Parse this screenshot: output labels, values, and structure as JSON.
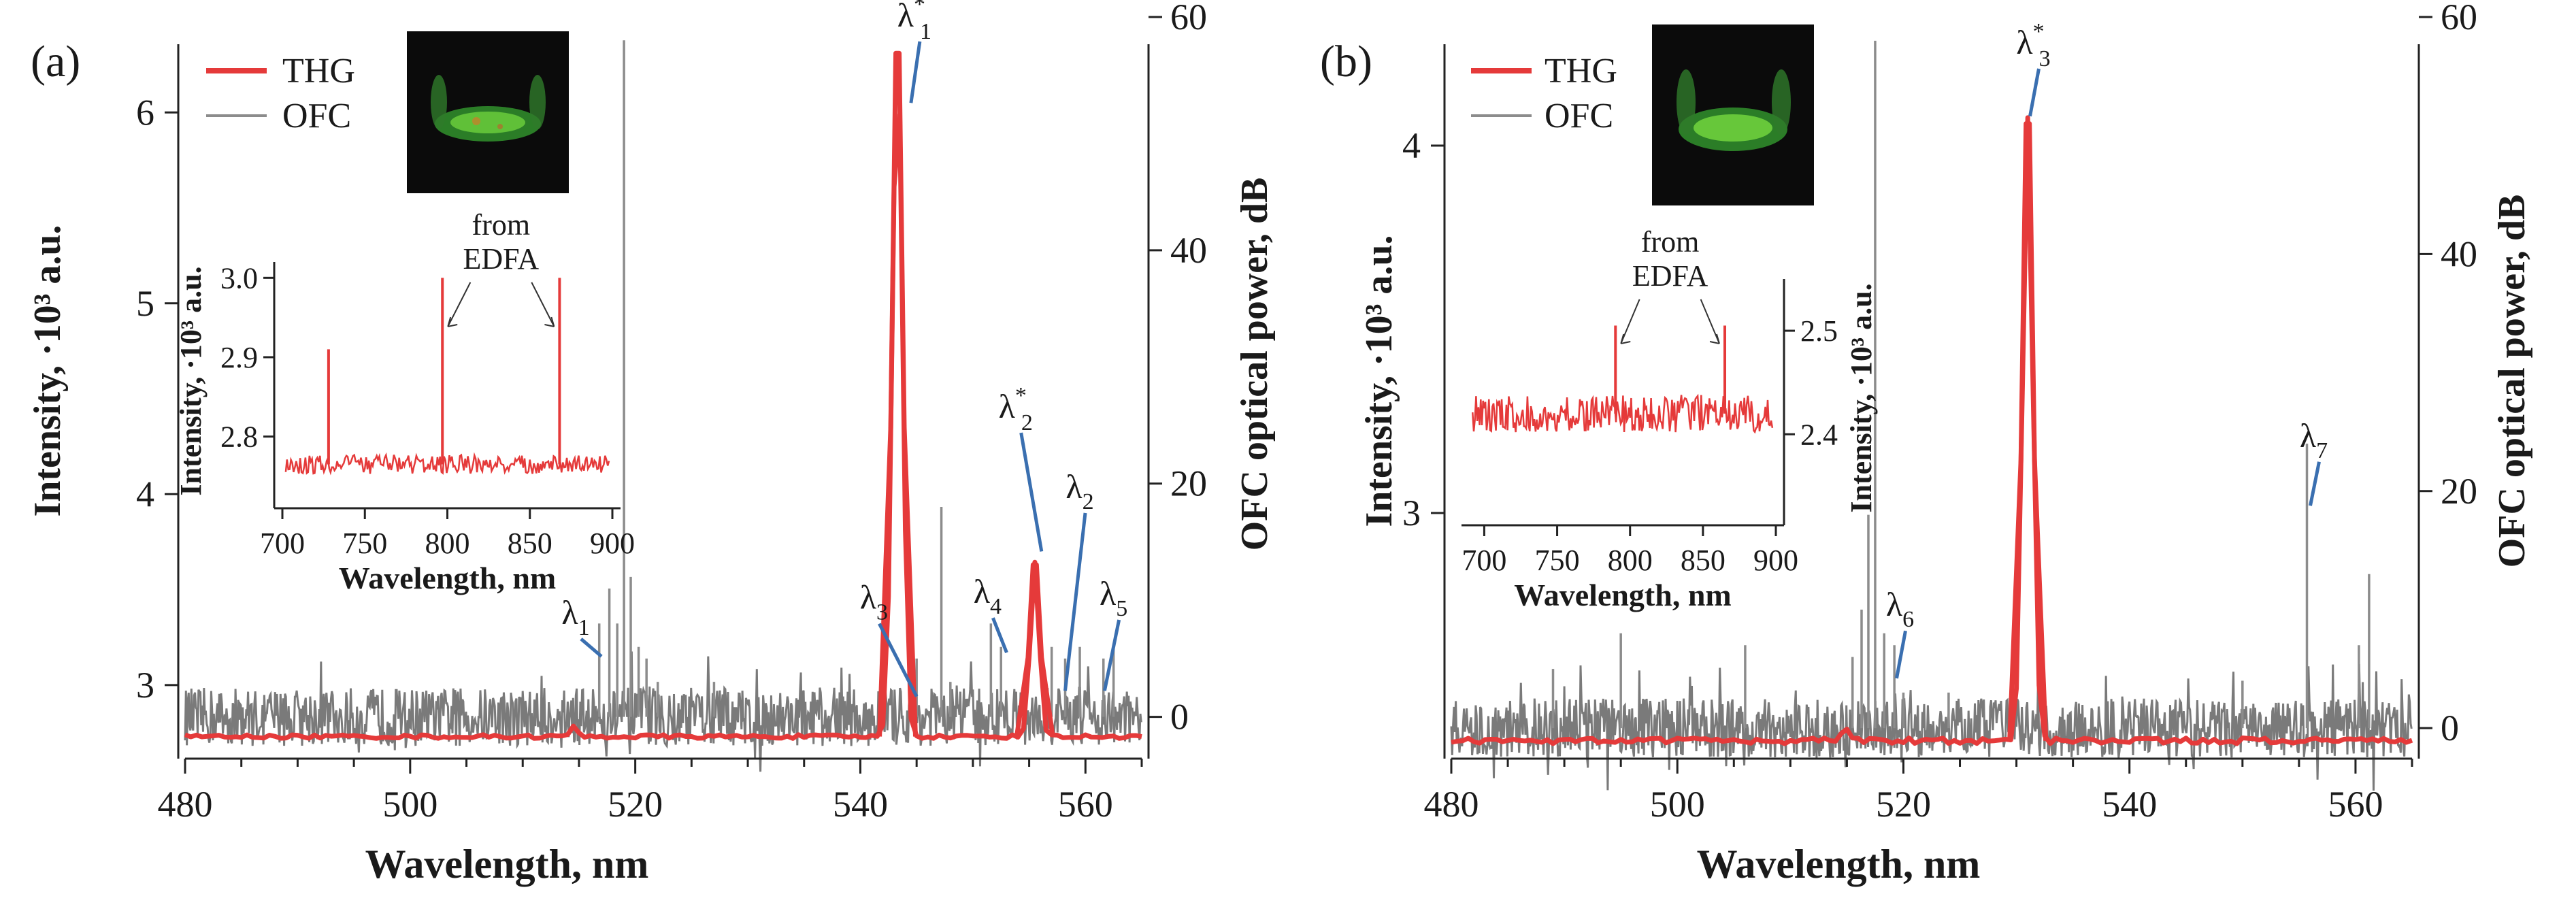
{
  "colors": {
    "thg": "#e53a3a",
    "ofc": "#8c8c8c",
    "leader": "#3a6fb0",
    "axis": "#222222"
  },
  "icons": {
    "inset_image": "green-fluorescence-micrograph-icon"
  },
  "chart_data": [
    {
      "type": "line",
      "panel": "(a)",
      "xlabel": "Wavelength, nm",
      "ylabel_left": "Intensity, ·10³ a.u.",
      "ylabel_right": "OFC optical power, dB",
      "xlim": [
        480,
        565
      ],
      "xticks": [
        480,
        500,
        520,
        540,
        560
      ],
      "ylim_left": [
        2.65,
        6.5
      ],
      "yticks_left": [
        3,
        4,
        5,
        6
      ],
      "ylim_right": [
        -3,
        60
      ],
      "yticks_right": [
        0,
        20,
        40,
        60
      ],
      "legend": [
        "THG",
        "OFC"
      ],
      "series": [
        {
          "name": "THG",
          "axis": "left",
          "baseline": 2.73,
          "noise": 0.01,
          "peaks": [
            {
              "x": 543.3,
              "y": 6.33,
              "w": 0.45
            },
            {
              "x": 555.5,
              "y": 3.65,
              "w": 0.4
            },
            {
              "x": 514.5,
              "y": 2.78,
              "w": 0.3
            }
          ]
        },
        {
          "name": "OFC",
          "axis": "right",
          "noise_floor": 0,
          "lines": [
            {
              "x": 516.8,
              "y": 8
            },
            {
              "x": 517.7,
              "y": 11
            },
            {
              "x": 518.4,
              "y": 8
            },
            {
              "x": 519.0,
              "y": 58
            },
            {
              "x": 519.6,
              "y": 12
            },
            {
              "x": 520.3,
              "y": 6
            },
            {
              "x": 521.0,
              "y": 5
            },
            {
              "x": 522.0,
              "y": 3
            },
            {
              "x": 527.0,
              "y": 3
            },
            {
              "x": 545.0,
              "y": 5
            },
            {
              "x": 547.2,
              "y": 18
            },
            {
              "x": 548.0,
              "y": 3
            },
            {
              "x": 551.6,
              "y": 8
            },
            {
              "x": 552.5,
              "y": 6
            },
            {
              "x": 557.0,
              "y": 6
            },
            {
              "x": 558.2,
              "y": 5
            },
            {
              "x": 559.5,
              "y": 6
            },
            {
              "x": 561.6,
              "y": 5
            },
            {
              "x": 562.5,
              "y": 6
            }
          ]
        }
      ],
      "annotations": [
        {
          "base": "λ",
          "sup": "*",
          "sub": "1",
          "tip": [
            544.5,
            6.05
          ],
          "label": [
            544.8,
            6.45
          ]
        },
        {
          "base": "λ",
          "sup": "*",
          "sub": "2",
          "tip": [
            556.1,
            3.7
          ],
          "label": [
            553.8,
            4.4
          ]
        },
        {
          "base": "λ",
          "sup": "",
          "sub": "1",
          "tip": [
            517.0,
            3.15
          ],
          "label": [
            514.7,
            3.32
          ]
        },
        {
          "base": "λ",
          "sup": "",
          "sub": "3",
          "tip": [
            545.0,
            2.94
          ],
          "label": [
            541.2,
            3.4
          ]
        },
        {
          "base": "λ",
          "sup": "",
          "sub": "4",
          "tip": [
            553.0,
            3.17
          ],
          "label": [
            551.3,
            3.43
          ]
        },
        {
          "base": "λ",
          "sup": "",
          "sub": "2",
          "tip": [
            558.2,
            2.97
          ],
          "label": [
            559.5,
            3.98
          ]
        },
        {
          "base": "λ",
          "sup": "",
          "sub": "5",
          "tip": [
            561.7,
            2.97
          ],
          "label": [
            562.5,
            3.42
          ]
        }
      ],
      "inset": {
        "xlabel": "Wavelength, nm",
        "ylabel": "Intensity, ·10³ a.u.",
        "xlim": [
          700,
          900
        ],
        "xticks": [
          700,
          750,
          800,
          850,
          900
        ],
        "ylim": [
          2.72,
          3.02
        ],
        "yticks": [
          2.8,
          2.9,
          3.0
        ],
        "baseline": 2.765,
        "noise": 0.012,
        "spikes": [
          {
            "x": 728,
            "y": 2.91
          },
          {
            "x": 797,
            "y": 3.0
          },
          {
            "x": 868,
            "y": 3.0
          }
        ],
        "note": "from\nEDFA"
      }
    },
    {
      "type": "line",
      "panel": "(b)",
      "xlabel": "Wavelength, nm",
      "ylabel_left": "Intensity, ·10³ a.u.",
      "ylabel_right": "OFC optical power, dB",
      "xlim": [
        480,
        565
      ],
      "xticks": [
        480,
        500,
        520,
        540,
        560
      ],
      "ylim_left": [
        2.35,
        4.35
      ],
      "yticks_left": [
        3,
        4
      ],
      "ylim_right": [
        -2,
        60
      ],
      "yticks_right": [
        0,
        20,
        40,
        60
      ],
      "legend": [
        "THG",
        "OFC"
      ],
      "series": [
        {
          "name": "THG",
          "axis": "left",
          "baseline": 2.38,
          "noise": 0.008,
          "peaks": [
            {
              "x": 531.0,
              "y": 4.08,
              "w": 0.45
            },
            {
              "x": 514.8,
              "y": 2.41,
              "w": 0.3
            }
          ]
        },
        {
          "name": "OFC",
          "axis": "right",
          "noise_floor": 0,
          "lines": [
            {
              "x": 489.0,
              "y": 5
            },
            {
              "x": 495.0,
              "y": 8
            },
            {
              "x": 506.0,
              "y": 7
            },
            {
              "x": 515.5,
              "y": 6
            },
            {
              "x": 516.3,
              "y": 10
            },
            {
              "x": 516.9,
              "y": 18
            },
            {
              "x": 517.5,
              "y": 58
            },
            {
              "x": 518.3,
              "y": 8
            },
            {
              "x": 519.2,
              "y": 7
            },
            {
              "x": 520.0,
              "y": 3
            },
            {
              "x": 524.0,
              "y": 3
            },
            {
              "x": 550.0,
              "y": 4
            },
            {
              "x": 555.7,
              "y": 24
            },
            {
              "x": 560.3,
              "y": 7
            },
            {
              "x": 561.2,
              "y": 13
            }
          ]
        }
      ],
      "annotations": [
        {
          "base": "λ",
          "sup": "*",
          "sub": "3",
          "tip": [
            531.2,
            4.08
          ],
          "label": [
            531.5,
            4.25
          ]
        },
        {
          "base": "λ",
          "sup": "",
          "sub": "6",
          "tip": [
            519.4,
            2.55
          ],
          "label": [
            519.7,
            2.72
          ]
        },
        {
          "base": "λ",
          "sup": "",
          "sub": "7",
          "tip": [
            556.0,
            3.02
          ],
          "label": [
            556.3,
            3.18
          ]
        }
      ],
      "inset": {
        "xlabel": "Wavelength, nm",
        "ylabel": "Intensity, ·10³ a.u.",
        "xlim": [
          690,
          900
        ],
        "xticks": [
          700,
          750,
          800,
          850,
          900
        ],
        "ylim": [
          2.32,
          2.55
        ],
        "yticks": [
          2.4,
          2.5
        ],
        "baseline": 2.42,
        "noise": 0.018,
        "spikes": [
          {
            "x": 790,
            "y": 2.505
          },
          {
            "x": 865,
            "y": 2.505
          }
        ],
        "note": "from\nEDFA"
      }
    }
  ]
}
